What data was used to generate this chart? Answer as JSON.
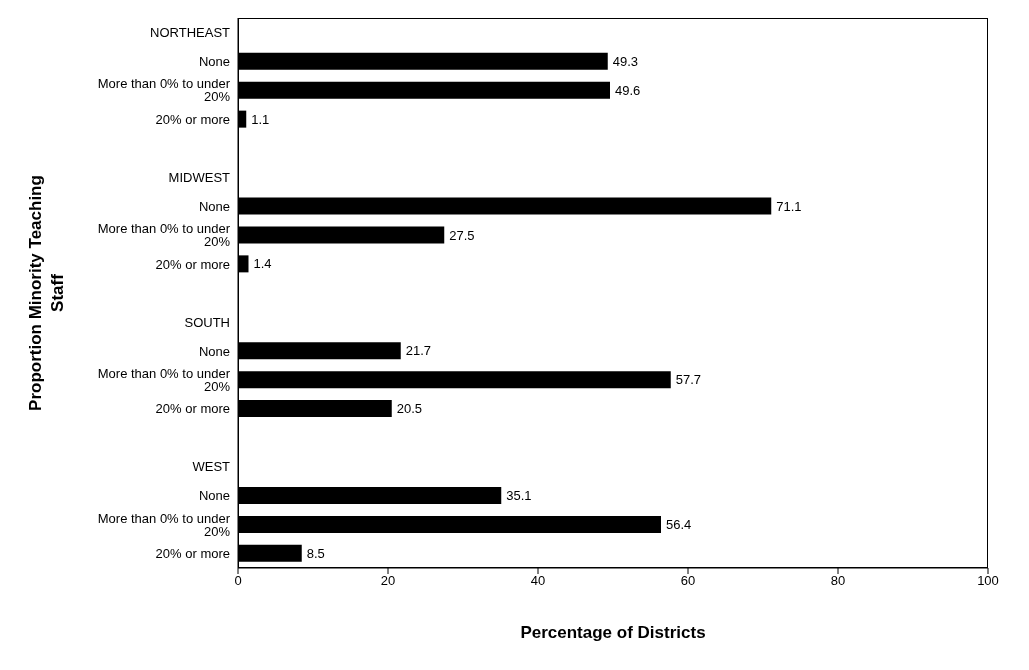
{
  "chart_data": {
    "type": "bar",
    "orientation": "horizontal",
    "xlabel": "Percentage of Districts",
    "ylabel": "Proportion Minority Teaching Staff",
    "categories": [
      "NORTHEAST",
      "None",
      "More than 0% to under 20%",
      "20% or more",
      null,
      "MIDWEST",
      "None",
      "More than 0% to under 20%",
      "20% or more",
      null,
      "SOUTH",
      "None",
      "More than 0% to under 20%",
      "20% or more",
      null,
      "WEST",
      "None",
      "More than 0% to under 20%",
      "20% or more"
    ],
    "values": [
      null,
      49.3,
      49.6,
      1.1,
      null,
      null,
      71.1,
      27.5,
      1.4,
      null,
      null,
      21.7,
      57.7,
      20.5,
      null,
      null,
      35.1,
      56.4,
      8.5
    ],
    "color": "#000000",
    "xlim": [
      0,
      100
    ],
    "xticks": [
      0,
      20,
      40,
      60,
      80,
      100
    ],
    "data_labels": true,
    "grid": false
  }
}
